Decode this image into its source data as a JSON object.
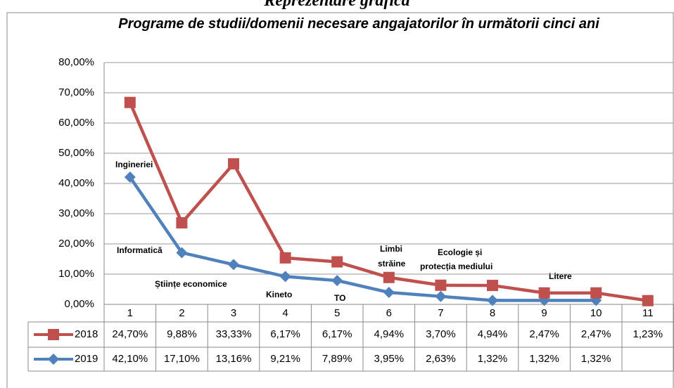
{
  "chart_data": {
    "type": "line",
    "stacked": true,
    "heading": "Reprezentare grafică",
    "title": "Programe de studii/domenii necesare angajatorilor în următorii cinci ani",
    "categories": [
      "1",
      "2",
      "3",
      "4",
      "5",
      "6",
      "7",
      "8",
      "9",
      "10",
      "11"
    ],
    "series": [
      {
        "name": "2019",
        "color": "#4f81bd",
        "marker": "diamond",
        "values": [
          42.1,
          17.1,
          13.16,
          9.21,
          7.89,
          3.95,
          2.63,
          1.32,
          1.32,
          1.32,
          null
        ],
        "value_labels": [
          "42,10%",
          "17,10%",
          "13,16%",
          "9,21%",
          "7,89%",
          "3,95%",
          "2,63%",
          "1,32%",
          "1,32%",
          "1,32%",
          null
        ]
      },
      {
        "name": "2018",
        "color": "#c0504d",
        "marker": "square",
        "values": [
          24.7,
          9.88,
          33.33,
          6.17,
          6.17,
          4.94,
          3.7,
          4.94,
          2.47,
          2.47,
          1.23
        ],
        "value_labels": [
          "24,70%",
          "9,88%",
          "33,33%",
          "6,17%",
          "6,17%",
          "4,94%",
          "3,70%",
          "4,94%",
          "2,47%",
          "2,47%",
          "1,23%"
        ]
      }
    ],
    "ylim": [
      0,
      80
    ],
    "yticks": [
      {
        "value": 0,
        "label": "0,00%"
      },
      {
        "value": 10,
        "label": "10,00%"
      },
      {
        "value": 20,
        "label": "20,00%"
      },
      {
        "value": 30,
        "label": "30,00%"
      },
      {
        "value": 40,
        "label": "40,00%"
      },
      {
        "value": 50,
        "label": "50,00%"
      },
      {
        "value": 60,
        "label": "60,00%"
      },
      {
        "value": 70,
        "label": "70,00%"
      },
      {
        "value": 80,
        "label": "80,00%"
      }
    ],
    "grid": true,
    "annotations": [
      "Ingineriei",
      "Informatică",
      "Științe economice",
      "Kineto",
      "TO",
      "Limbi",
      "străine",
      "Ecologie și",
      "protecția mediului",
      "Litere"
    ]
  }
}
